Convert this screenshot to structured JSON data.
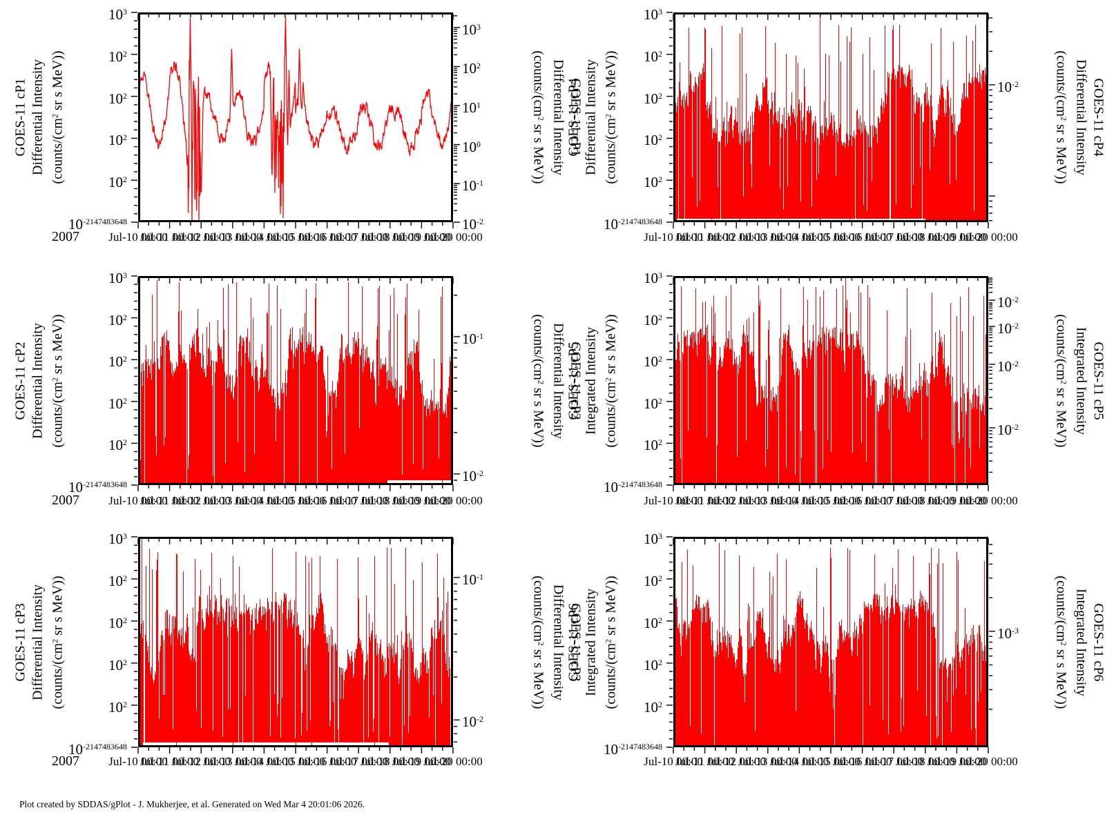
{
  "footer": {
    "credit": "Plot created by SDDAS/gPlot - J. Mukherjee, et al.  Generated on Wed Mar 4 20:01:06 2026."
  },
  "colors": {
    "series": "#ff0000",
    "axis": "#000000",
    "background": "#ffffff"
  },
  "chart_data": {
    "type": "multi-panel time series (2 columns x 3 rows), log intensity vs time",
    "mission": "GOES-11",
    "x_range": [
      "2007-07-10 00:00",
      "2007-07-20 00:00"
    ],
    "xaxis": {
      "year": "2007",
      "tick_labels": [
        "Jul-10 00:00",
        "Jul-11 00:00",
        "Jul-12 00:00",
        "Jul-13 00:00",
        "Jul-14 00:00",
        "Jul-15 00:00",
        "Jul-16 00:00",
        "Jul-17 00:00",
        "Jul-18 00:00",
        "Jul-19 00:00",
        "Jul-20 00:00"
      ]
    },
    "shared_left_ticks": [
      {
        "f": 0.0,
        "t": "10^{3}"
      },
      {
        "f": 0.2,
        "t": "10^{2}"
      },
      {
        "f": 0.4,
        "t": "10^{2}"
      },
      {
        "f": 0.6,
        "t": "10^{2}"
      },
      {
        "f": 0.8,
        "t": "10^{2}"
      },
      {
        "f": 1.0,
        "t": "10^{-2147483648}"
      }
    ],
    "panels": [
      {
        "id": "cP1",
        "row": 0,
        "col": 0,
        "left_title": [
          "GOES-11 cP1",
          "Differential Intensity",
          "(counts/(cm^{2} sr s MeV))"
        ],
        "right_title": [
          "GOES-11 cP1",
          "Differential Intensity",
          "(counts/(cm^{2} sr s MeV))"
        ],
        "right_axis": {
          "decade": 0.186,
          "majors": [
            {
              "f": 0.072,
              "t": "10^{3}"
            },
            {
              "f": 0.258,
              "t": "10^{2}"
            },
            {
              "f": 0.444,
              "t": "10^{1}"
            },
            {
              "f": 0.63,
              "t": "10^{0}"
            },
            {
              "f": 0.816,
              "t": "10^{-1}"
            },
            {
              "f": 1.0,
              "t": "10^{-2}"
            }
          ]
        },
        "series": {
          "kind": "line",
          "seed": 11,
          "day_base": [
            0.47,
            0.45,
            0.5,
            0.52,
            0.47,
            0.54,
            0.56,
            0.54,
            0.55,
            0.5
          ],
          "day_amp": [
            0.165,
            0.21,
            0.1,
            0.13,
            0.2,
            0.1,
            0.08,
            0.095,
            0.085,
            0.125
          ],
          "noisy_zones": [
            [
              0.158,
              0.197,
              0.3,
              1.03
            ],
            [
              0.432,
              0.465,
              0.42,
              1.0
            ]
          ],
          "spikes": [
            [
              0.131,
              0.3,
              0.004
            ],
            [
              0.1655,
              0.02,
              0.005
            ],
            [
              0.176,
              0.33,
              0.004
            ],
            [
              0.297,
              0.165,
              0.0045
            ],
            [
              0.468,
              0.0,
              0.0065
            ],
            [
              0.479,
              0.26,
              0.004
            ],
            [
              0.512,
              0.17,
              0.004
            ],
            [
              0.524,
              0.33,
              0.004
            ],
            [
              0.156,
              0.74,
              0.004
            ],
            [
              0.2,
              0.9,
              0.006
            ],
            [
              0.425,
              0.82,
              0.005
            ]
          ]
        }
      },
      {
        "id": "cP4",
        "row": 0,
        "col": 1,
        "left_title": [
          "GOES-11 cP4",
          "Differential Intensity",
          "(counts/(cm^{2} sr s MeV))"
        ],
        "right_title": [
          "GOES-11 cP4",
          "Differential Intensity",
          "(counts/(cm^{2} sr s MeV))"
        ],
        "right_axis": {
          "decade": 0.53,
          "majors": [
            {
              "f": 0.345,
              "t": "10^{-2}"
            },
            {
              "f": 0.875,
              "t": null
            }
          ]
        },
        "series": {
          "kind": "fill",
          "seed": 4,
          "base": 0.44,
          "walk": 0.16,
          "gap_prob": 0.012,
          "spike_prob": 0.1,
          "spike_min": 0.06,
          "dip_prob": 0.06,
          "features": [
            [
              0.465,
              -0.01
            ],
            [
              0.12,
              0.17
            ],
            [
              0.21,
              0.1
            ],
            [
              0.56,
              0.14
            ],
            [
              0.93,
              0.11
            ]
          ],
          "baseline_gap": [
            0.01,
            0.8,
            5
          ]
        }
      },
      {
        "id": "cP2",
        "row": 1,
        "col": 0,
        "left_title": [
          "GOES-11 cP2",
          "Differential Intensity",
          "(counts/(cm^{2} sr s MeV))"
        ],
        "right_title": [
          "GOES-11 cP2",
          "Differential Intensity",
          "(counts/(cm^{2} sr s MeV))"
        ],
        "right_axis": {
          "decade": 0.657,
          "majors": [
            {
              "f": 0.29,
              "t": "10^{-1}"
            },
            {
              "f": 0.947,
              "t": "10^{-2}"
            }
          ]
        },
        "series": {
          "kind": "fill",
          "seed": 2,
          "base": 0.46,
          "walk": 0.17,
          "gap_prob": 0.012,
          "spike_prob": 0.1,
          "spike_min": 0.03,
          "dip_prob": 0.05,
          "features": [
            [
              0.06,
              0.02
            ],
            [
              0.285,
              0.04
            ],
            [
              0.71,
              0.05
            ],
            [
              0.76,
              0.06
            ],
            [
              0.965,
              0.05
            ]
          ],
          "baseline_gap": [
            0.79,
            1.0,
            7
          ]
        }
      },
      {
        "id": "cP5",
        "row": 1,
        "col": 1,
        "left_title": [
          "GOES-11 cP5",
          "Integrated Intensity",
          "(counts/(cm^{2} sr s MeV))"
        ],
        "right_title": [
          "GOES-11 cP5",
          "Integrated Intensity",
          "(counts/(cm^{2} sr s MeV))"
        ],
        "right_axis": {
          "decade": 0.25,
          "majors": [
            {
              "f": 0.116,
              "t": "10^{-2}"
            },
            {
              "f": 0.241,
              "t": "10^{-2}"
            },
            {
              "f": 0.422,
              "t": "10^{-2}"
            },
            {
              "f": 0.726,
              "t": "10^{-2}"
            }
          ]
        },
        "series": {
          "kind": "fill",
          "seed": 5,
          "base": 0.45,
          "walk": 0.17,
          "gap_prob": 0.02,
          "spike_prob": 0.11,
          "spike_min": 0.04,
          "dip_prob": 0.07,
          "features": [
            [
              0.545,
              0.0
            ],
            [
              0.025,
              0.05
            ],
            [
              0.475,
              0.07
            ],
            [
              0.82,
              0.08
            ]
          ],
          "baseline_gap": null
        }
      },
      {
        "id": "cP3",
        "row": 2,
        "col": 0,
        "left_title": [
          "GOES-11 cP3",
          "Differential Intensity",
          "(counts/(cm^{2} sr s MeV))"
        ],
        "right_title": [
          "GOES-11 cP3",
          "Differential Intensity",
          "(counts/(cm^{2} sr s MeV))"
        ],
        "right_axis": {
          "decade": 0.677,
          "majors": [
            {
              "f": 0.193,
              "t": "10^{-1}"
            },
            {
              "f": 0.87,
              "t": "10^{-2}"
            }
          ]
        },
        "series": {
          "kind": "fill",
          "seed": 3,
          "base": 0.48,
          "walk": 0.17,
          "gap_prob": 0.03,
          "spike_prob": 0.11,
          "spike_min": 0.05,
          "dip_prob": 0.08,
          "features": [
            [
              0.012,
              0.0
            ],
            [
              0.12,
              0.08
            ],
            [
              0.3,
              0.09
            ],
            [
              0.5,
              0.07
            ],
            [
              0.55,
              0.1
            ],
            [
              0.75,
              0.09
            ],
            [
              0.95,
              0.08
            ]
          ],
          "baseline_gap": [
            0.015,
            0.795,
            7
          ]
        }
      },
      {
        "id": "cP6",
        "row": 2,
        "col": 1,
        "left_title": [
          "GOES-11 cP6",
          "Integrated Intensity",
          "(counts/(cm^{2} sr s MeV))"
        ],
        "right_title": [
          "GOES-11 cP6",
          "Integrated Intensity",
          "(counts/(cm^{2} sr s MeV))"
        ],
        "right_axis": {
          "decade": 0.53,
          "majors": [
            {
              "f": 0.449,
              "t": "10^{-3}"
            }
          ]
        },
        "series": {
          "kind": "fill",
          "seed": 6,
          "base": 0.46,
          "walk": 0.16,
          "gap_prob": 0.018,
          "spike_prob": 0.1,
          "spike_min": 0.05,
          "dip_prob": 0.06,
          "features": [
            [
              0.145,
              0.03
            ],
            [
              0.33,
              0.08
            ],
            [
              0.5,
              0.1
            ],
            [
              0.76,
              0.09
            ],
            [
              0.9,
              0.07
            ]
          ],
          "baseline_gap": null
        }
      }
    ]
  }
}
